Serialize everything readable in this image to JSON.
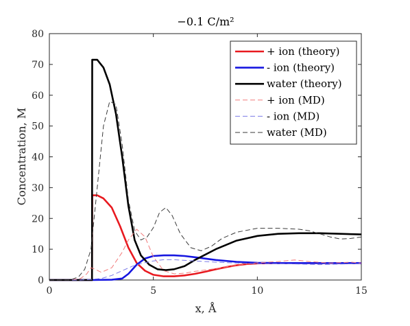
{
  "chart_data": {
    "type": "line",
    "title": "−0.1 C/m²",
    "xlabel": "x, Å",
    "ylabel": "Concentration, M",
    "xlim": [
      0,
      15
    ],
    "ylim": [
      0,
      80
    ],
    "xticks": [
      0,
      5,
      10,
      15
    ],
    "yticks": [
      0,
      10,
      20,
      30,
      40,
      50,
      60,
      70,
      80
    ],
    "legend_position": "top-right",
    "series": [
      {
        "name": "+ ion (theory)",
        "color": "#e8191f",
        "dash": "solid",
        "x": [
          0,
          2.05,
          2.06,
          2.3,
          2.6,
          3.0,
          3.4,
          3.8,
          4.2,
          4.6,
          5.0,
          5.5,
          6.0,
          6.5,
          7.0,
          7.5,
          8.0,
          8.5,
          9.0,
          9.5,
          10.0,
          11.0,
          12.0,
          13.0,
          15.0
        ],
        "y": [
          0,
          0,
          27.5,
          27.5,
          26.5,
          23.5,
          17.5,
          10.5,
          5.5,
          3.0,
          1.7,
          1.2,
          1.2,
          1.5,
          2.0,
          2.7,
          3.5,
          4.2,
          4.8,
          5.2,
          5.4,
          5.5,
          5.5,
          5.5,
          5.5
        ]
      },
      {
        "name": "- ion (theory)",
        "color": "#1616e0",
        "dash": "solid",
        "x": [
          0,
          2.05,
          3.0,
          3.5,
          3.8,
          4.2,
          4.6,
          5.0,
          5.5,
          6.0,
          6.5,
          7.0,
          8.0,
          9.0,
          10.0,
          11.0,
          15.0
        ],
        "y": [
          0,
          0,
          0.1,
          0.5,
          2.0,
          5.0,
          7.0,
          7.8,
          8.0,
          8.0,
          7.8,
          7.4,
          6.5,
          5.9,
          5.6,
          5.5,
          5.5
        ]
      },
      {
        "name": "water (theory)",
        "color": "#000000",
        "dash": "solid",
        "x": [
          0,
          2.05,
          2.06,
          2.3,
          2.6,
          2.9,
          3.2,
          3.5,
          3.8,
          4.1,
          4.4,
          4.8,
          5.2,
          5.6,
          6.0,
          6.5,
          7.0,
          8.0,
          9.0,
          10.0,
          11.0,
          12.0,
          13.0,
          14.0,
          15.0
        ],
        "y": [
          0,
          0,
          71.5,
          71.5,
          69.0,
          63.5,
          54.0,
          40.0,
          24.0,
          13.0,
          8.0,
          5.0,
          3.5,
          3.2,
          3.5,
          4.5,
          6.5,
          10.0,
          12.8,
          14.3,
          15.0,
          15.2,
          15.2,
          15.0,
          14.8
        ]
      },
      {
        "name": "+ ion (MD)",
        "color": "#f27a7a",
        "dash": "dashed",
        "x": [
          0,
          1.0,
          1.5,
          1.8,
          2.0,
          2.2,
          2.5,
          3.0,
          3.5,
          3.8,
          4.2,
          4.6,
          5.0,
          5.5,
          6.0,
          6.5,
          7.0,
          8.0,
          9.0,
          10.0,
          11.0,
          11.8,
          12.5,
          13.5,
          14.5,
          15.0
        ],
        "y": [
          0,
          0,
          0.5,
          2.0,
          4.0,
          3.5,
          2.5,
          4.0,
          9.0,
          13.0,
          16.5,
          14.0,
          7.5,
          3.0,
          2.0,
          2.2,
          2.8,
          3.7,
          4.8,
          5.6,
          6.0,
          6.5,
          6.0,
          5.5,
          5.8,
          5.5
        ]
      },
      {
        "name": "- ion (MD)",
        "color": "#7a7ae8",
        "dash": "dashed",
        "x": [
          0,
          1.5,
          2.0,
          2.5,
          3.0,
          3.5,
          4.0,
          4.5,
          5.0,
          5.5,
          6.0,
          7.0,
          8.0,
          9.0,
          10.0,
          11.0,
          12.0,
          13.0,
          14.0,
          15.0
        ],
        "y": [
          0,
          0,
          0.2,
          0.5,
          1.5,
          3.0,
          4.5,
          5.5,
          6.2,
          6.6,
          6.6,
          6.2,
          5.8,
          5.5,
          5.3,
          5.3,
          5.2,
          5.0,
          5.2,
          5.3
        ]
      },
      {
        "name": "water (MD)",
        "color": "#3a3a3a",
        "dash": "dashed",
        "x": [
          0,
          1.0,
          1.4,
          1.7,
          2.0,
          2.3,
          2.6,
          2.9,
          3.2,
          3.5,
          3.8,
          4.1,
          4.4,
          4.7,
          5.0,
          5.3,
          5.6,
          5.9,
          6.3,
          6.8,
          7.3,
          7.8,
          8.3,
          9.0,
          10.0,
          11.0,
          12.0,
          12.5,
          13.0,
          13.5,
          14.0,
          14.5,
          15.0
        ],
        "y": [
          0,
          0,
          1.0,
          3.5,
          10.0,
          30.0,
          50.0,
          58.0,
          57.0,
          44.0,
          26.0,
          16.0,
          13.0,
          14.0,
          17.0,
          22.0,
          23.5,
          21.0,
          15.0,
          10.5,
          9.5,
          11.0,
          13.5,
          15.5,
          16.8,
          16.8,
          16.5,
          16.0,
          15.0,
          14.0,
          13.3,
          13.5,
          14.0
        ]
      }
    ]
  }
}
